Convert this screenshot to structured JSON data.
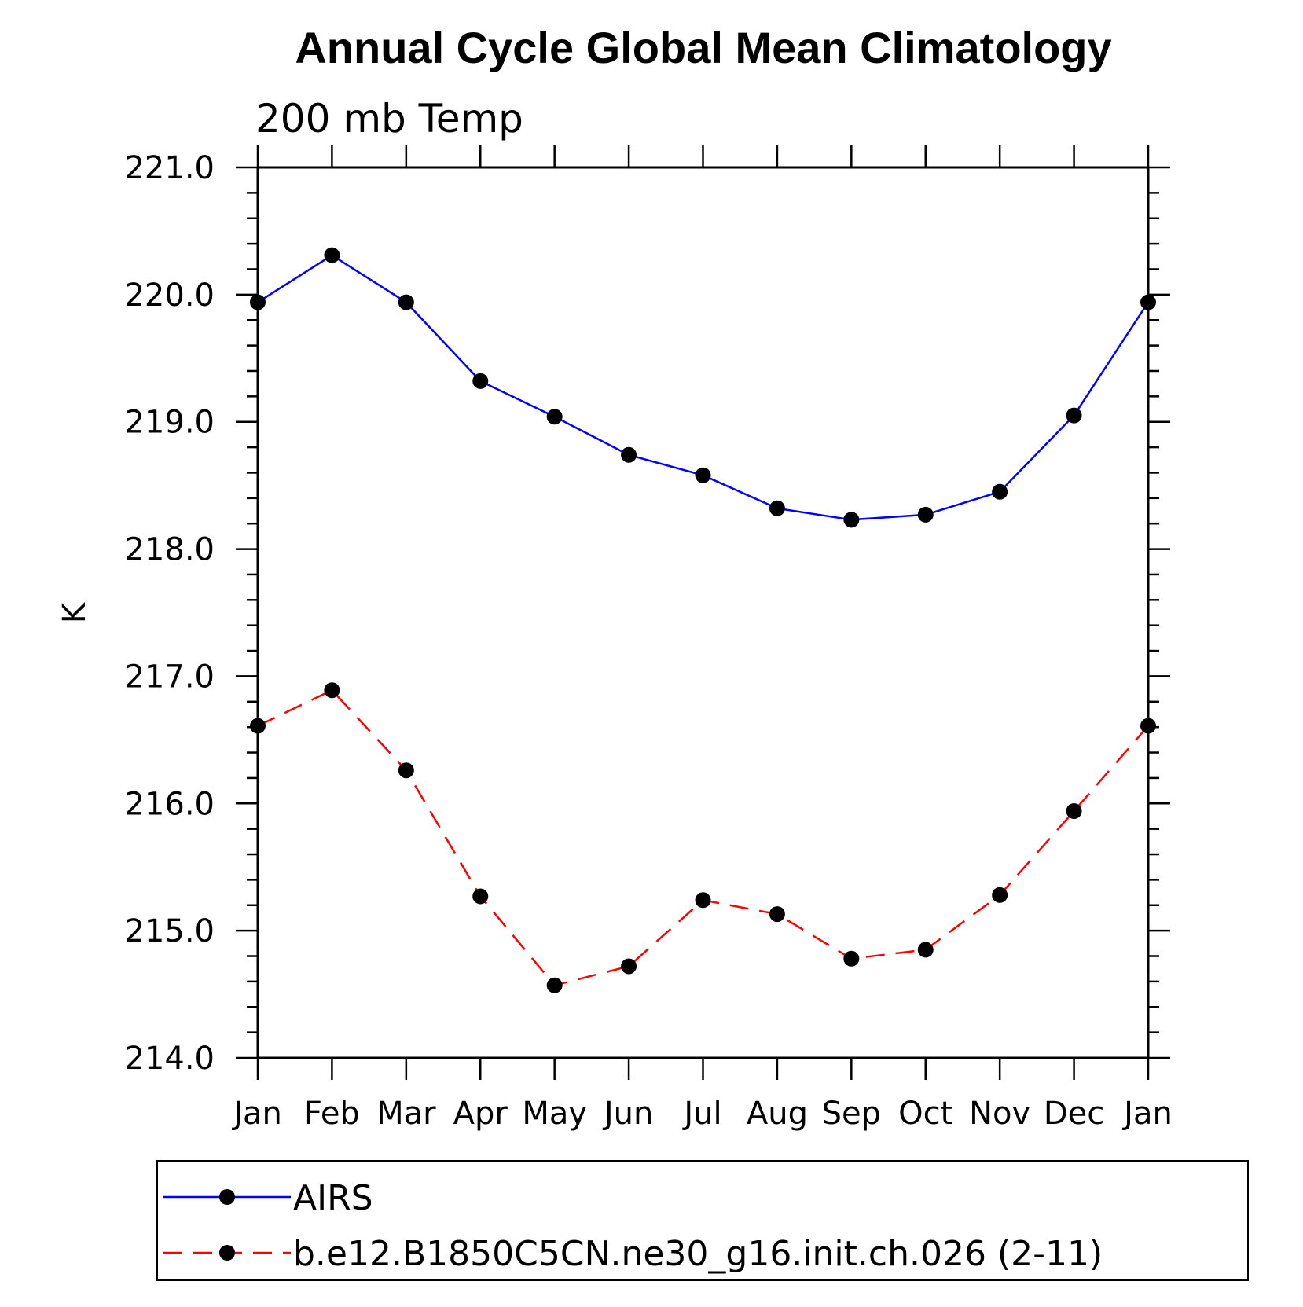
{
  "chart_data": {
    "type": "line",
    "title": "Annual Cycle Global Mean Climatology",
    "subtitle": "200 mb Temp",
    "ylabel": "K",
    "xlabel": "",
    "ylim": [
      214.0,
      221.0
    ],
    "y_ticks": [
      "214.0",
      "215.0",
      "216.0",
      "217.0",
      "218.0",
      "219.0",
      "220.0",
      "221.0"
    ],
    "categories": [
      "Jan",
      "Feb",
      "Mar",
      "Apr",
      "May",
      "Jun",
      "Jul",
      "Aug",
      "Sep",
      "Oct",
      "Nov",
      "Dec",
      "Jan"
    ],
    "series": [
      {
        "name": "AIRS",
        "color": "#0000ff",
        "dashed": false,
        "values": [
          219.94,
          220.31,
          219.94,
          219.32,
          219.04,
          218.74,
          218.58,
          218.32,
          218.23,
          218.27,
          218.45,
          219.05,
          219.94
        ]
      },
      {
        "name": "b.e12.B1850C5CN.ne30_g16.init.ch.026 (2-11)",
        "color": "#ff0000",
        "dashed": true,
        "values": [
          216.61,
          216.89,
          216.26,
          215.27,
          214.57,
          214.72,
          215.24,
          215.13,
          214.78,
          214.85,
          215.28,
          215.94,
          216.61
        ]
      }
    ],
    "grid": false,
    "legend_position": "bottom"
  }
}
